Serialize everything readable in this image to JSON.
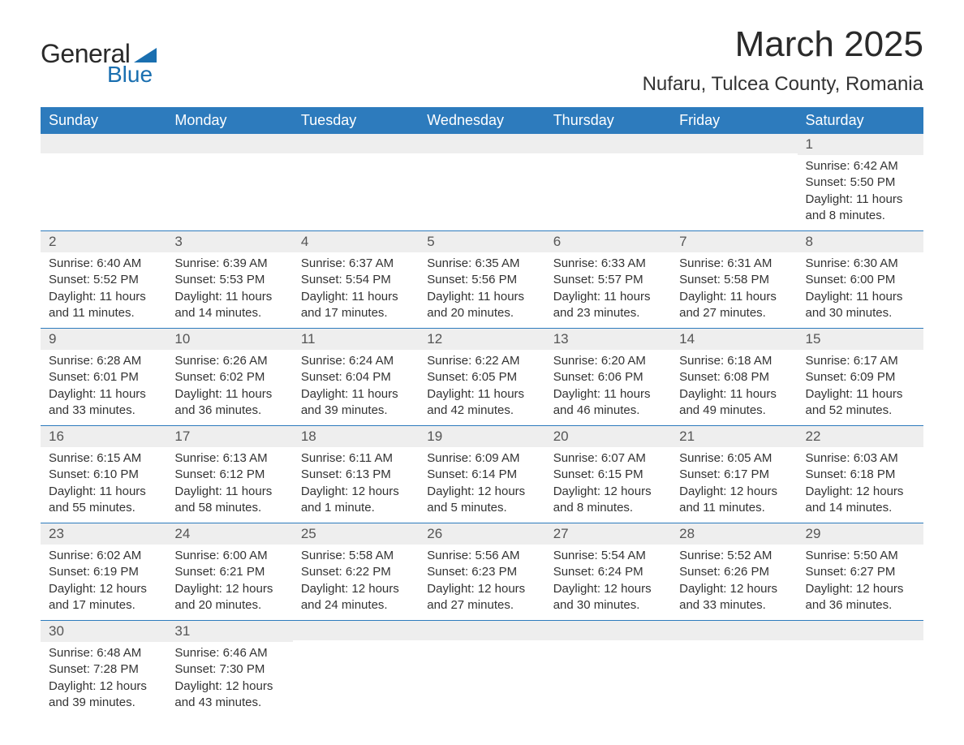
{
  "logo": {
    "text_general": "General",
    "text_blue": "Blue",
    "accent_color": "#1a6fb0"
  },
  "title": "March 2025",
  "location": "Nufaru, Tulcea County, Romania",
  "colors": {
    "header_bg": "#2d7bbd",
    "header_text": "#ffffff",
    "daynum_bg": "#eeeeee",
    "row_divider": "#2d7bbd",
    "body_text": "#333333",
    "background": "#ffffff"
  },
  "weekdays": [
    "Sunday",
    "Monday",
    "Tuesday",
    "Wednesday",
    "Thursday",
    "Friday",
    "Saturday"
  ],
  "weeks": [
    [
      {
        "day": "",
        "sunrise": "",
        "sunset": "",
        "daylight": ""
      },
      {
        "day": "",
        "sunrise": "",
        "sunset": "",
        "daylight": ""
      },
      {
        "day": "",
        "sunrise": "",
        "sunset": "",
        "daylight": ""
      },
      {
        "day": "",
        "sunrise": "",
        "sunset": "",
        "daylight": ""
      },
      {
        "day": "",
        "sunrise": "",
        "sunset": "",
        "daylight": ""
      },
      {
        "day": "",
        "sunrise": "",
        "sunset": "",
        "daylight": ""
      },
      {
        "day": "1",
        "sunrise": "Sunrise: 6:42 AM",
        "sunset": "Sunset: 5:50 PM",
        "daylight": "Daylight: 11 hours and 8 minutes."
      }
    ],
    [
      {
        "day": "2",
        "sunrise": "Sunrise: 6:40 AM",
        "sunset": "Sunset: 5:52 PM",
        "daylight": "Daylight: 11 hours and 11 minutes."
      },
      {
        "day": "3",
        "sunrise": "Sunrise: 6:39 AM",
        "sunset": "Sunset: 5:53 PM",
        "daylight": "Daylight: 11 hours and 14 minutes."
      },
      {
        "day": "4",
        "sunrise": "Sunrise: 6:37 AM",
        "sunset": "Sunset: 5:54 PM",
        "daylight": "Daylight: 11 hours and 17 minutes."
      },
      {
        "day": "5",
        "sunrise": "Sunrise: 6:35 AM",
        "sunset": "Sunset: 5:56 PM",
        "daylight": "Daylight: 11 hours and 20 minutes."
      },
      {
        "day": "6",
        "sunrise": "Sunrise: 6:33 AM",
        "sunset": "Sunset: 5:57 PM",
        "daylight": "Daylight: 11 hours and 23 minutes."
      },
      {
        "day": "7",
        "sunrise": "Sunrise: 6:31 AM",
        "sunset": "Sunset: 5:58 PM",
        "daylight": "Daylight: 11 hours and 27 minutes."
      },
      {
        "day": "8",
        "sunrise": "Sunrise: 6:30 AM",
        "sunset": "Sunset: 6:00 PM",
        "daylight": "Daylight: 11 hours and 30 minutes."
      }
    ],
    [
      {
        "day": "9",
        "sunrise": "Sunrise: 6:28 AM",
        "sunset": "Sunset: 6:01 PM",
        "daylight": "Daylight: 11 hours and 33 minutes."
      },
      {
        "day": "10",
        "sunrise": "Sunrise: 6:26 AM",
        "sunset": "Sunset: 6:02 PM",
        "daylight": "Daylight: 11 hours and 36 minutes."
      },
      {
        "day": "11",
        "sunrise": "Sunrise: 6:24 AM",
        "sunset": "Sunset: 6:04 PM",
        "daylight": "Daylight: 11 hours and 39 minutes."
      },
      {
        "day": "12",
        "sunrise": "Sunrise: 6:22 AM",
        "sunset": "Sunset: 6:05 PM",
        "daylight": "Daylight: 11 hours and 42 minutes."
      },
      {
        "day": "13",
        "sunrise": "Sunrise: 6:20 AM",
        "sunset": "Sunset: 6:06 PM",
        "daylight": "Daylight: 11 hours and 46 minutes."
      },
      {
        "day": "14",
        "sunrise": "Sunrise: 6:18 AM",
        "sunset": "Sunset: 6:08 PM",
        "daylight": "Daylight: 11 hours and 49 minutes."
      },
      {
        "day": "15",
        "sunrise": "Sunrise: 6:17 AM",
        "sunset": "Sunset: 6:09 PM",
        "daylight": "Daylight: 11 hours and 52 minutes."
      }
    ],
    [
      {
        "day": "16",
        "sunrise": "Sunrise: 6:15 AM",
        "sunset": "Sunset: 6:10 PM",
        "daylight": "Daylight: 11 hours and 55 minutes."
      },
      {
        "day": "17",
        "sunrise": "Sunrise: 6:13 AM",
        "sunset": "Sunset: 6:12 PM",
        "daylight": "Daylight: 11 hours and 58 minutes."
      },
      {
        "day": "18",
        "sunrise": "Sunrise: 6:11 AM",
        "sunset": "Sunset: 6:13 PM",
        "daylight": "Daylight: 12 hours and 1 minute."
      },
      {
        "day": "19",
        "sunrise": "Sunrise: 6:09 AM",
        "sunset": "Sunset: 6:14 PM",
        "daylight": "Daylight: 12 hours and 5 minutes."
      },
      {
        "day": "20",
        "sunrise": "Sunrise: 6:07 AM",
        "sunset": "Sunset: 6:15 PM",
        "daylight": "Daylight: 12 hours and 8 minutes."
      },
      {
        "day": "21",
        "sunrise": "Sunrise: 6:05 AM",
        "sunset": "Sunset: 6:17 PM",
        "daylight": "Daylight: 12 hours and 11 minutes."
      },
      {
        "day": "22",
        "sunrise": "Sunrise: 6:03 AM",
        "sunset": "Sunset: 6:18 PM",
        "daylight": "Daylight: 12 hours and 14 minutes."
      }
    ],
    [
      {
        "day": "23",
        "sunrise": "Sunrise: 6:02 AM",
        "sunset": "Sunset: 6:19 PM",
        "daylight": "Daylight: 12 hours and 17 minutes."
      },
      {
        "day": "24",
        "sunrise": "Sunrise: 6:00 AM",
        "sunset": "Sunset: 6:21 PM",
        "daylight": "Daylight: 12 hours and 20 minutes."
      },
      {
        "day": "25",
        "sunrise": "Sunrise: 5:58 AM",
        "sunset": "Sunset: 6:22 PM",
        "daylight": "Daylight: 12 hours and 24 minutes."
      },
      {
        "day": "26",
        "sunrise": "Sunrise: 5:56 AM",
        "sunset": "Sunset: 6:23 PM",
        "daylight": "Daylight: 12 hours and 27 minutes."
      },
      {
        "day": "27",
        "sunrise": "Sunrise: 5:54 AM",
        "sunset": "Sunset: 6:24 PM",
        "daylight": "Daylight: 12 hours and 30 minutes."
      },
      {
        "day": "28",
        "sunrise": "Sunrise: 5:52 AM",
        "sunset": "Sunset: 6:26 PM",
        "daylight": "Daylight: 12 hours and 33 minutes."
      },
      {
        "day": "29",
        "sunrise": "Sunrise: 5:50 AM",
        "sunset": "Sunset: 6:27 PM",
        "daylight": "Daylight: 12 hours and 36 minutes."
      }
    ],
    [
      {
        "day": "30",
        "sunrise": "Sunrise: 6:48 AM",
        "sunset": "Sunset: 7:28 PM",
        "daylight": "Daylight: 12 hours and 39 minutes."
      },
      {
        "day": "31",
        "sunrise": "Sunrise: 6:46 AM",
        "sunset": "Sunset: 7:30 PM",
        "daylight": "Daylight: 12 hours and 43 minutes."
      },
      {
        "day": "",
        "sunrise": "",
        "sunset": "",
        "daylight": ""
      },
      {
        "day": "",
        "sunrise": "",
        "sunset": "",
        "daylight": ""
      },
      {
        "day": "",
        "sunrise": "",
        "sunset": "",
        "daylight": ""
      },
      {
        "day": "",
        "sunrise": "",
        "sunset": "",
        "daylight": ""
      },
      {
        "day": "",
        "sunrise": "",
        "sunset": "",
        "daylight": ""
      }
    ]
  ]
}
